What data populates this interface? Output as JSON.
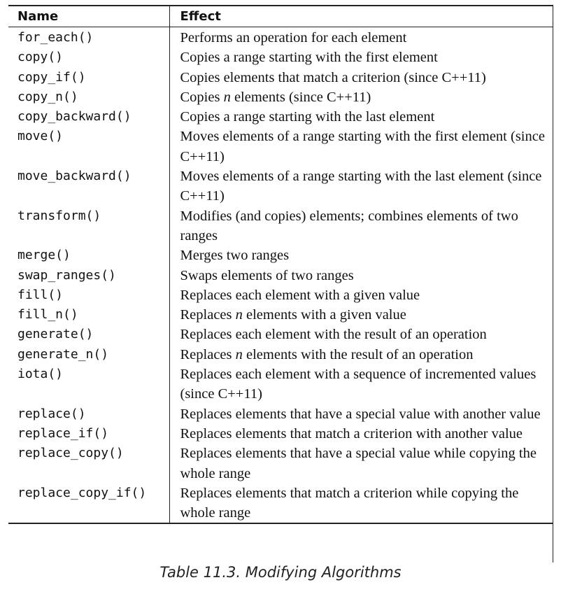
{
  "table": {
    "headers": {
      "name": "Name",
      "effect": "Effect"
    },
    "rows": [
      {
        "name": "for_each()",
        "effect": "Performs an operation for each element"
      },
      {
        "name": "copy()",
        "effect": "Copies a range starting with the first element"
      },
      {
        "name": "copy_if()",
        "effect": "Copies elements that match a criterion (since C++11)"
      },
      {
        "name": "copy_n()",
        "effect": "Copies n elements (since C++11)"
      },
      {
        "name": "copy_backward()",
        "effect": "Copies a range starting with the last element"
      },
      {
        "name": "move()",
        "effect": "Moves elements of a range starting with the first element (since C++11)"
      },
      {
        "name": "move_backward()",
        "effect": "Moves elements of a range starting with the last element (since C++11)"
      },
      {
        "name": "transform()",
        "effect": "Modifies (and copies) elements; combines elements of two ranges"
      },
      {
        "name": "merge()",
        "effect": "Merges two ranges"
      },
      {
        "name": "swap_ranges()",
        "effect": "Swaps elements of two ranges"
      },
      {
        "name": "fill()",
        "effect": "Replaces each element with a given value"
      },
      {
        "name": "fill_n()",
        "effect": "Replaces n elements with a given value"
      },
      {
        "name": "generate()",
        "effect": "Replaces each element with the result of an operation"
      },
      {
        "name": "generate_n()",
        "effect": "Replaces n elements with the result of an operation"
      },
      {
        "name": "iota()",
        "effect": "Replaces each element with a sequence of incremented values (since C++11)"
      },
      {
        "name": "replace()",
        "effect": "Replaces elements that have a special value with another value"
      },
      {
        "name": "replace_if()",
        "effect": "Replaces elements that match a criterion with another value"
      },
      {
        "name": "replace_copy()",
        "effect": "Replaces elements that have a special value while copying the whole range"
      },
      {
        "name": "replace_copy_if()",
        "effect": "Replaces elements that match a criterion while copying the whole range"
      }
    ]
  },
  "caption": "Table 11.3. Modifying Algorithms"
}
